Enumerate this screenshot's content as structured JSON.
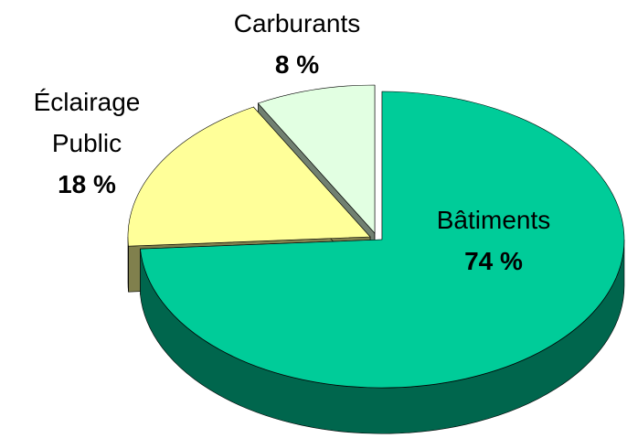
{
  "chart_data": {
    "type": "pie3d",
    "categories": [
      "Bâtiments",
      "Éclairage Public",
      "Carburants"
    ],
    "values": [
      74,
      18,
      8
    ],
    "value_labels": [
      "74 %",
      "18 %",
      "8 %"
    ],
    "colors": [
      "#00cc99",
      "#ffff99",
      "#e2ffe2"
    ]
  }
}
